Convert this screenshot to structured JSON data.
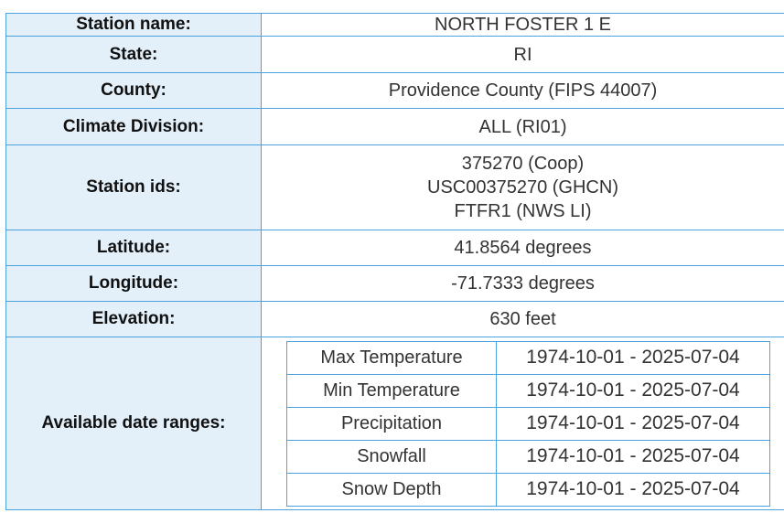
{
  "rows": [
    {
      "label": "Station name:",
      "value": "NORTH FOSTER 1 E"
    },
    {
      "label": "State:",
      "value": "RI"
    },
    {
      "label": "County:",
      "value": "Providence County  (FIPS 44007)"
    },
    {
      "label": "Climate Division:",
      "value": "ALL  (RI01)"
    }
  ],
  "station_ids": {
    "label": "Station ids:",
    "values": [
      "375270 (Coop)",
      "USC00375270 (GHCN)",
      "FTFR1 (NWS LI)"
    ]
  },
  "rows2": [
    {
      "label": "Latitude:",
      "value": "41.8564 degrees"
    },
    {
      "label": "Longitude:",
      "value": "-71.7333 degrees"
    },
    {
      "label": "Elevation:",
      "value": "630 feet"
    }
  ],
  "date_ranges": {
    "label": "Available date ranges:",
    "items": [
      {
        "element": "Max Temperature",
        "range": "1974-10-01 - 2025-07-04"
      },
      {
        "element": "Min Temperature",
        "range": "1974-10-01 - 2025-07-04"
      },
      {
        "element": "Precipitation",
        "range": "1974-10-01 - 2025-07-04"
      },
      {
        "element": "Snowfall",
        "range": "1974-10-01 - 2025-07-04"
      },
      {
        "element": "Snow Depth",
        "range": "1974-10-01 - 2025-07-04"
      }
    ]
  },
  "colors": {
    "border": "#4aa3df",
    "label_bg": "#e3f0fa"
  }
}
